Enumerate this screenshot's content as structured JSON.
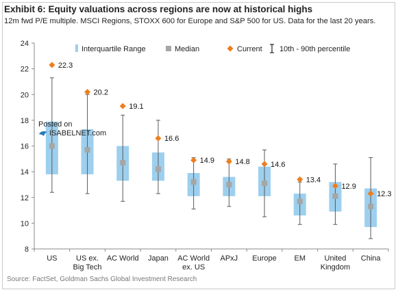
{
  "header": {
    "title": "Exhibit 6: Equity valuations across regions are now at historical highs",
    "subtitle": "12m fwd P/E multiple. MSCI Regions, STOXX 600 for Europe and S&P 500 for US. Data for the last 20 years."
  },
  "footer": {
    "source": "Source: FactSet, Goldman Sachs Global Investment Research"
  },
  "watermark": {
    "line1": "Posted on",
    "line2": "ISABELNET.com"
  },
  "colors": {
    "iqr": "#9dcfee",
    "median": "#a6a6a6",
    "current": "#ee7d1f",
    "whisker": "#595959"
  },
  "chart_data": {
    "type": "box",
    "ylim": [
      8,
      24
    ],
    "yticks": [
      8,
      10,
      12,
      14,
      16,
      18,
      20,
      22,
      24
    ],
    "legend": {
      "iqr": "Interquartile Range",
      "median": "Median",
      "current": "Current",
      "whisker": "10th - 90th percentile"
    },
    "categories": [
      {
        "label": [
          "US"
        ],
        "p10": 12.4,
        "q1": 13.8,
        "median": 16.0,
        "q3": 17.9,
        "p90": 21.3,
        "current": 22.3
      },
      {
        "label": [
          "US ex.",
          "Big Tech"
        ],
        "p10": 12.3,
        "q1": 13.8,
        "median": 15.7,
        "q3": 17.3,
        "p90": 20.0,
        "current": 20.2
      },
      {
        "label": [
          "AC World"
        ],
        "p10": 11.7,
        "q1": 13.3,
        "median": 14.7,
        "q3": 16.0,
        "p90": 18.4,
        "current": 19.1
      },
      {
        "label": [
          "Japan"
        ],
        "p10": 12.3,
        "q1": 13.3,
        "median": 14.2,
        "q3": 15.5,
        "p90": 18.0,
        "current": 16.6
      },
      {
        "label": [
          "AC World",
          "ex. US"
        ],
        "p10": 11.1,
        "q1": 12.1,
        "median": 13.2,
        "q3": 13.9,
        "p90": 15.1,
        "current": 14.9
      },
      {
        "label": [
          "APxJ"
        ],
        "p10": 11.3,
        "q1": 12.1,
        "median": 13.0,
        "q3": 13.6,
        "p90": 15.0,
        "current": 14.8
      },
      {
        "label": [
          "Europe"
        ],
        "p10": 10.5,
        "q1": 12.1,
        "median": 13.1,
        "q3": 14.4,
        "p90": 15.7,
        "current": 14.6
      },
      {
        "label": [
          "EM"
        ],
        "p10": 9.9,
        "q1": 10.6,
        "median": 11.7,
        "q3": 12.3,
        "p90": 13.2,
        "current": 13.4
      },
      {
        "label": [
          "United",
          "Kingdom"
        ],
        "p10": 9.9,
        "q1": 10.9,
        "median": 12.1,
        "q3": 13.2,
        "p90": 14.6,
        "current": 12.9
      },
      {
        "label": [
          "China"
        ],
        "p10": 8.8,
        "q1": 9.7,
        "median": 11.3,
        "q3": 12.7,
        "p90": 15.1,
        "current": 12.3
      }
    ]
  }
}
